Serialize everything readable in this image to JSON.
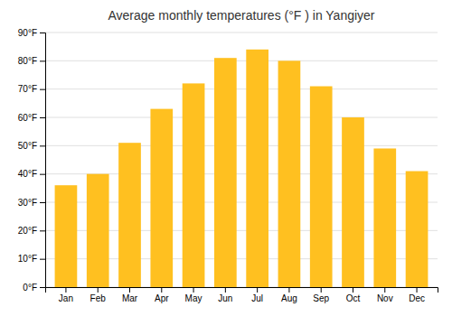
{
  "chart_data": {
    "type": "bar",
    "title": "Average monthly temperatures (°F ) in Yangiyer",
    "categories": [
      "Jan",
      "Feb",
      "Mar",
      "Apr",
      "May",
      "Jun",
      "Jul",
      "Aug",
      "Sep",
      "Oct",
      "Nov",
      "Dec"
    ],
    "values": [
      36,
      40,
      51,
      63,
      72,
      81,
      84,
      80,
      71,
      60,
      49,
      41
    ],
    "color": "#FFC020",
    "ylim": [
      0,
      90
    ],
    "yticks": [
      {
        "value": 0,
        "label": "0°F"
      },
      {
        "value": 10,
        "label": "10°F"
      },
      {
        "value": 20,
        "label": "20°F"
      },
      {
        "value": 30,
        "label": "30°F"
      },
      {
        "value": 40,
        "label": "40°F"
      },
      {
        "value": 50,
        "label": "50°F"
      },
      {
        "value": 60,
        "label": "60°F"
      },
      {
        "value": 70,
        "label": "70°F"
      },
      {
        "value": 80,
        "label": "80°F"
      },
      {
        "value": 90,
        "label": "90°F"
      }
    ],
    "grid": true
  }
}
